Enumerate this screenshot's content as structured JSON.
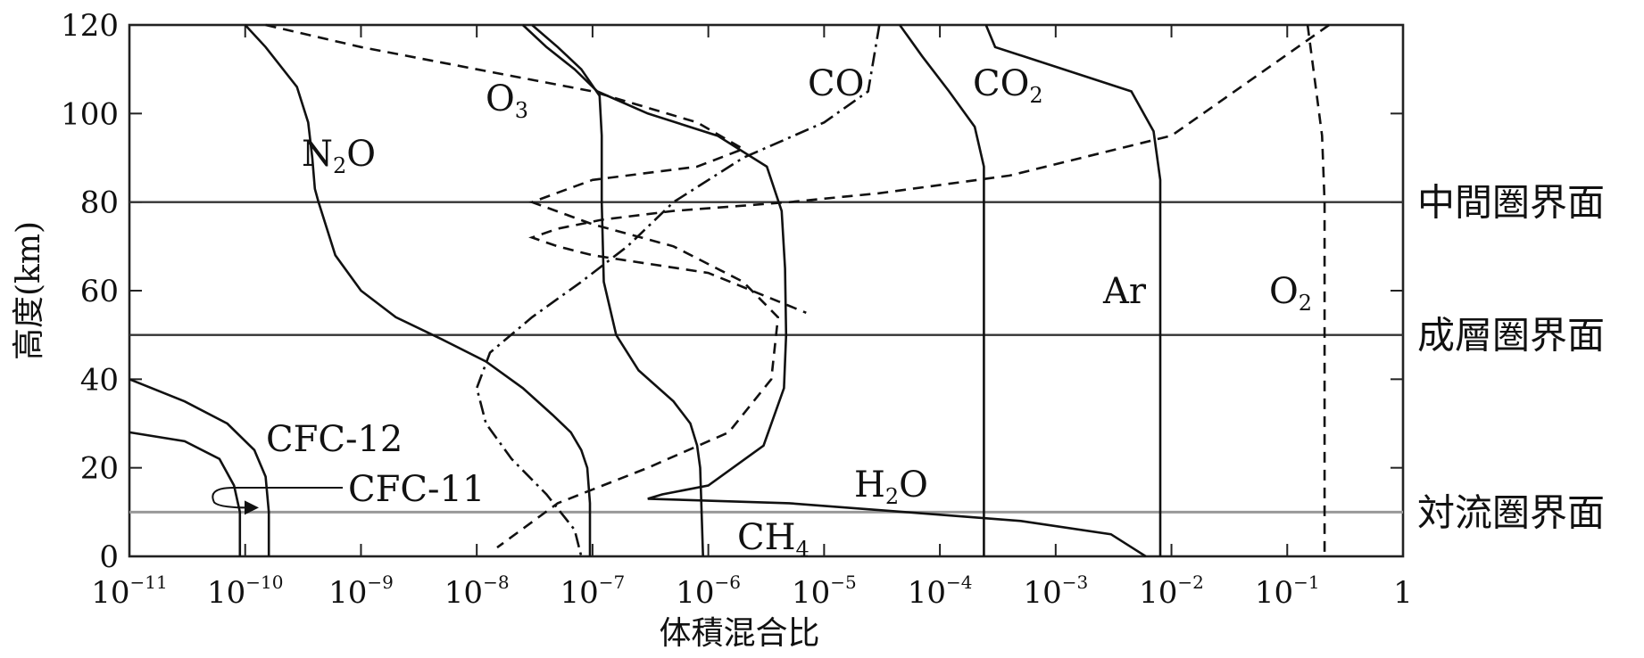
{
  "chart_data": {
    "type": "line",
    "xlabel": "体積混合比",
    "ylabel": "高度(km)",
    "x_scale": "log",
    "xlim": [
      1e-11,
      1
    ],
    "ylim": [
      0,
      120
    ],
    "x_ticks": [
      {
        "base": "10",
        "exp": "−11",
        "value": 1e-11
      },
      {
        "base": "10",
        "exp": "−10",
        "value": 1e-10
      },
      {
        "base": "10",
        "exp": "−9",
        "value": 1e-09
      },
      {
        "base": "10",
        "exp": "−8",
        "value": 1e-08
      },
      {
        "base": "10",
        "exp": "−7",
        "value": 1e-07
      },
      {
        "base": "10",
        "exp": "−6",
        "value": 1e-06
      },
      {
        "base": "10",
        "exp": "−5",
        "value": 1e-05
      },
      {
        "base": "10",
        "exp": "−4",
        "value": 0.0001
      },
      {
        "base": "10",
        "exp": "−3",
        "value": 0.001
      },
      {
        "base": "10",
        "exp": "−2",
        "value": 0.01
      },
      {
        "base": "10",
        "exp": "−1",
        "value": 0.1
      },
      {
        "base": "1",
        "exp": "",
        "value": 1
      }
    ],
    "y_ticks": [
      "0",
      "20",
      "40",
      "60",
      "80",
      "100",
      "120"
    ],
    "boundaries": [
      {
        "label": "中間圏界面",
        "altitude": 80
      },
      {
        "label": "成層圏界面",
        "altitude": 50
      },
      {
        "label": "対流圏界面",
        "altitude": 10
      }
    ],
    "series": [
      {
        "label": "N",
        "sub": "2",
        "tail": "O",
        "style": "solid",
        "x": [
          1e-10,
          1.5e-10,
          2.8e-10,
          3.5e-10,
          3.8e-10,
          4e-10,
          4.3e-10,
          6e-10,
          1e-09,
          2e-09,
          5e-09,
          1.2e-08,
          2.5e-08,
          4.5e-08,
          6.5e-08,
          8e-08,
          9e-08,
          9.5e-08,
          9.5e-08
        ],
        "y": [
          120,
          115,
          106,
          98,
          90,
          83,
          80,
          68,
          60,
          54,
          49,
          44,
          38,
          32,
          28,
          24,
          20,
          12,
          0
        ]
      },
      {
        "label": "CO",
        "sub": "",
        "tail": "",
        "style": "dashdot",
        "x": [
          3e-05,
          2.4e-05,
          1e-05,
          2e-06,
          5e-07,
          2e-07,
          8e-08,
          3e-08,
          1.3e-08,
          1e-08,
          1.2e-08,
          2e-08,
          4e-08,
          7e-08,
          8e-08
        ],
        "y": [
          120,
          105,
          98,
          90,
          80,
          70,
          62,
          54,
          46,
          38,
          30,
          22,
          14,
          6,
          0
        ]
      },
      {
        "label": "CO",
        "sub": "2",
        "tail": "",
        "style": "solid",
        "x": [
          4.5e-05,
          7e-05,
          0.00012,
          0.0002,
          0.00024,
          0.00024,
          0.00024,
          0.00024
        ],
        "y": [
          120,
          113,
          105,
          97,
          88,
          80,
          50,
          0
        ]
      },
      {
        "label": "Ar",
        "sub": "",
        "tail": "",
        "style": "solid",
        "x": [
          0.00025,
          0.0003,
          0.0045,
          0.007,
          0.008,
          0.008,
          0.008
        ],
        "y": [
          120,
          115,
          105,
          96,
          85,
          50,
          0
        ]
      },
      {
        "label": "O",
        "sub": "",
        "tail": "",
        "style": "dashed",
        "x": [
          0.23,
          0.01,
          0.0004,
          3e-05,
          5e-06,
          5e-07,
          1.2e-07,
          5e-08,
          3e-08,
          5e-08,
          1e-07,
          1e-06,
          7e-06
        ],
        "y": [
          120,
          95,
          86,
          82,
          80,
          78,
          76,
          74,
          72,
          70,
          68,
          64,
          55
        ]
      },
      {
        "label": "O",
        "sub": "2",
        "tail": "",
        "style": "dashed",
        "x": [
          0.15,
          0.2,
          0.21,
          0.21,
          0.21
        ],
        "y": [
          120,
          95,
          80,
          50,
          0
        ]
      },
      {
        "label": "O",
        "sub": "3",
        "tail": "",
        "style": "dashed",
        "x": [
          1.5e-10,
          1e-09,
          1e-08,
          1e-07,
          8e-07,
          2e-06,
          8e-07,
          1e-07,
          3e-08,
          1e-07,
          5e-07,
          2e-06,
          4e-06,
          3.5e-06,
          1.5e-06,
          3e-07,
          5e-08,
          1.5e-08
        ],
        "y": [
          120,
          115,
          110,
          105,
          98,
          92,
          88,
          85,
          80,
          75,
          70,
          62,
          54,
          40,
          28,
          20,
          12,
          2
        ]
      },
      {
        "label": "H",
        "sub": "2",
        "tail": "O",
        "style": "solid",
        "x": [
          2.5e-08,
          4e-08,
          7e-08,
          1.1e-07,
          3e-07,
          1.2e-06,
          3.2e-06,
          4.3e-06,
          4.6e-06,
          4.7e-06,
          4.5e-06,
          3e-06,
          1e-06,
          4e-07,
          3e-07,
          5e-06,
          5e-05,
          0.0005,
          0.003,
          0.006
        ],
        "y": [
          120,
          115,
          110,
          105,
          100,
          95,
          88,
          78,
          65,
          50,
          38,
          25,
          16,
          14,
          13,
          12,
          10,
          8,
          5,
          0
        ]
      },
      {
        "label": "CH",
        "sub": "4",
        "tail": "",
        "style": "solid",
        "x": [
          3e-08,
          5e-08,
          8e-08,
          1.15e-07,
          1.2e-07,
          1.2e-07,
          1.25e-07,
          1.6e-07,
          2.5e-07,
          5e-07,
          7e-07,
          8e-07,
          8.5e-07,
          9e-07
        ],
        "y": [
          120,
          115,
          110,
          104,
          95,
          80,
          62,
          50,
          42,
          35,
          30,
          25,
          20,
          0
        ]
      },
      {
        "label": "CFC-12",
        "sub": "",
        "tail": "",
        "style": "solid",
        "x": [
          1e-11,
          3e-11,
          7e-11,
          1.2e-10,
          1.5e-10,
          1.6e-10,
          1.6e-10
        ],
        "y": [
          40,
          35,
          30,
          24,
          18,
          10,
          0
        ]
      },
      {
        "label": "CFC-11",
        "sub": "",
        "tail": "",
        "style": "solid",
        "x": [
          1e-11,
          3e-11,
          6e-11,
          8e-11,
          9e-11,
          9e-11
        ],
        "y": [
          28,
          26,
          22,
          16,
          10,
          0
        ]
      }
    ]
  }
}
